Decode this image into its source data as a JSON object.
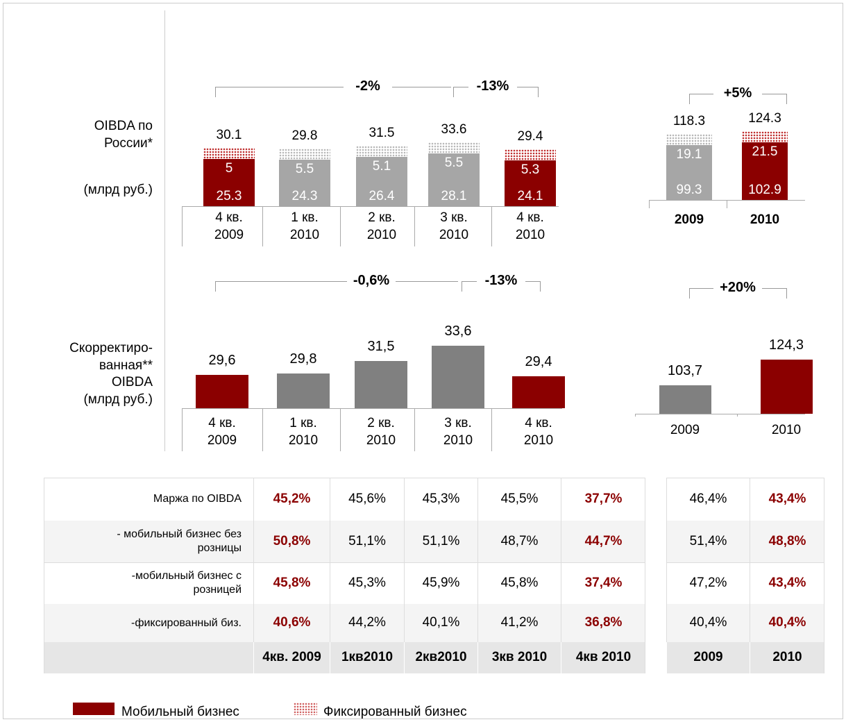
{
  "chart_data": [
    {
      "type": "stacked_bar",
      "title": "OIBDA по\nРоссии*",
      "unit": "(млрд руб.)",
      "categories": [
        "4 кв.\n2009",
        "1 кв.\n2010",
        "2 кв.\n2010",
        "3 кв.\n2010",
        "4 кв.\n2010"
      ],
      "bar_colors": [
        "#8b0000",
        "#a6a6a6",
        "#a6a6a6",
        "#a6a6a6",
        "#8b0000"
      ],
      "series": [
        {
          "values": [
            25.3,
            24.3,
            26.4,
            28.1,
            24.1
          ]
        },
        {
          "values": [
            5.0,
            5.5,
            5.1,
            5.5,
            5.3
          ]
        }
      ],
      "totals": [
        30.1,
        29.8,
        31.5,
        33.6,
        29.4
      ],
      "changes": [
        "-2%",
        "-13%"
      ],
      "ylim": [
        0,
        40
      ]
    },
    {
      "type": "stacked_bar",
      "categories": [
        "2009",
        "2010"
      ],
      "bar_colors": [
        "#a6a6a6",
        "#8b0000"
      ],
      "series": [
        {
          "values": [
            99.3,
            102.9
          ]
        },
        {
          "values": [
            19.1,
            21.5
          ]
        }
      ],
      "totals": [
        118.3,
        124.3
      ],
      "changes": [
        "+5%"
      ],
      "ylim": [
        0,
        150
      ]
    },
    {
      "type": "bar",
      "title": "Скорректиро-\nванная**\nOIBDA\n(млрд руб.)",
      "categories": [
        "4 кв.\n2009",
        "1 кв.\n2010",
        "2 кв.\n2010",
        "3 кв.\n2010",
        "4 кв.\n2010"
      ],
      "bar_colors": [
        "#8b0000",
        "#808080",
        "#808080",
        "#808080",
        "#8b0000"
      ],
      "values": [
        29.6,
        29.8,
        31.5,
        33.6,
        29.4
      ],
      "value_labels": [
        "29,6",
        "29,8",
        "31,5",
        "33,6",
        "29,4"
      ],
      "changes": [
        "-0,6%",
        "-13%"
      ],
      "ylim": [
        25,
        36
      ]
    },
    {
      "type": "bar",
      "categories": [
        "2009",
        "2010"
      ],
      "bar_colors": [
        "#808080",
        "#8b0000"
      ],
      "values": [
        103.7,
        124.3
      ],
      "value_labels": [
        "103,7",
        "124,3"
      ],
      "changes": [
        "+20%"
      ],
      "ylim": [
        80,
        140
      ]
    }
  ],
  "table": {
    "rows": [
      {
        "label": "Маржа по OIBDA",
        "quarters": [
          "45,2%",
          "45,6%",
          "45,3%",
          "45,5%",
          "37,7%"
        ],
        "years": [
          "46,4%",
          "43,4%"
        ]
      },
      {
        "label": "- мобильный бизнес без\nрозницы",
        "quarters": [
          "50,8%",
          "51,1%",
          "51,1%",
          "48,7%",
          "44,7%"
        ],
        "years": [
          "51,4%",
          "48,8%"
        ]
      },
      {
        "label": "-мобильный бизнес с\nрозницей",
        "quarters": [
          "45,8%",
          "45,3%",
          "45,9%",
          "45,8%",
          "37,4%"
        ],
        "years": [
          "47,2%",
          "43,4%"
        ]
      },
      {
        "label": "-фиксированный биз.",
        "quarters": [
          "40,6%",
          "44,2%",
          "40,1%",
          "41,2%",
          "36,8%"
        ],
        "years": [
          "40,4%",
          "40,4%"
        ]
      }
    ],
    "header": {
      "quarters": [
        "4кв. 2009",
        "1кв2010",
        "2кв2010",
        "3кв 2010",
        "4кв 2010"
      ],
      "years": [
        "2009",
        "2010"
      ]
    },
    "highlight_quarters": [
      true,
      false,
      false,
      false,
      true
    ],
    "highlight_years": [
      false,
      true
    ],
    "highlight_color": "#8b0000"
  },
  "legend": [
    {
      "name": "Мобильный бизнес",
      "color": "#8b0000"
    },
    {
      "name": "Фиксированный бизнес",
      "color": "#d06060",
      "pattern": "dots"
    }
  ]
}
